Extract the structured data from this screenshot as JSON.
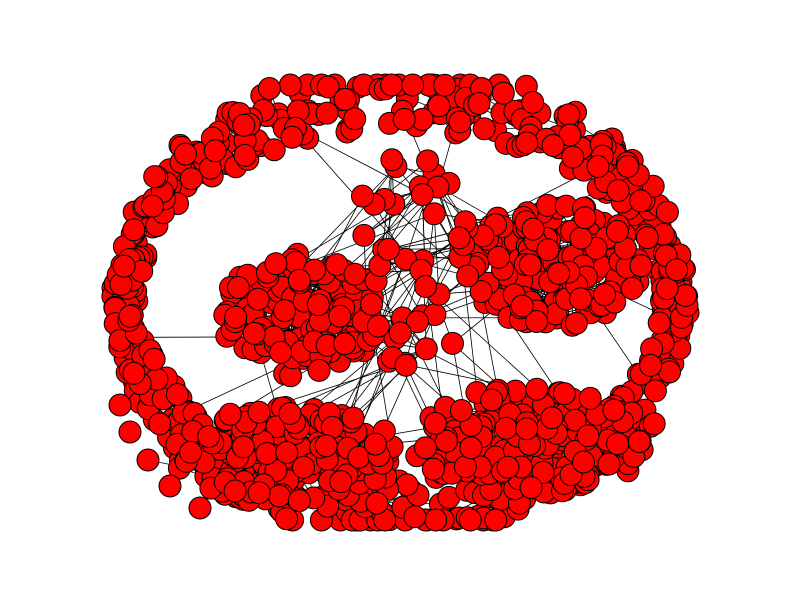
{
  "figure": {
    "type": "network-graph",
    "layout": "spring",
    "axes_visible": false,
    "background_color": "#ffffff"
  },
  "style": {
    "node_fill": "#ff0000",
    "node_stroke": "#000000",
    "edge_color": "#000000"
  },
  "chart_data": {
    "type": "network",
    "node_labels_shown": false,
    "clusters": [
      {
        "name": "outer-ring",
        "node_count": 640
      },
      {
        "name": "left-community",
        "node_count": 140
      },
      {
        "name": "right-community",
        "node_count": 150
      },
      {
        "name": "bottom-left-community",
        "node_count": 160
      },
      {
        "name": "bottom-right-community",
        "node_count": 160
      },
      {
        "name": "central-bridge",
        "node_count": 45
      }
    ]
  }
}
